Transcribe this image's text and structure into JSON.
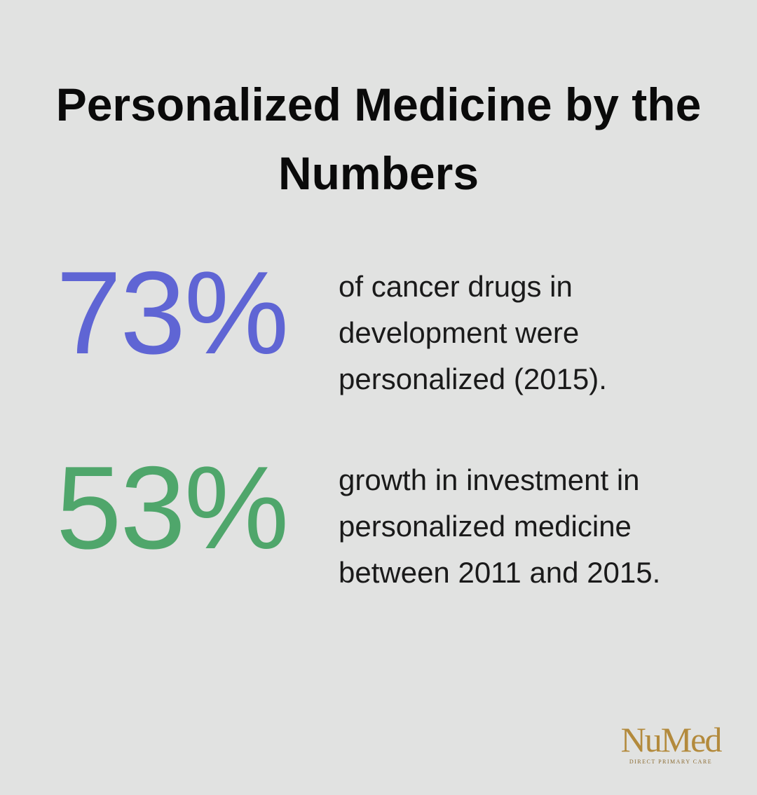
{
  "header": {
    "title": "Personalized Medicine by the Numbers"
  },
  "stats": [
    {
      "value": "73%",
      "description": "of cancer drugs in development were personalized (2015)."
    },
    {
      "value": "53%",
      "description": "growth in investment in personalized medicine between 2011 and 2015."
    }
  ],
  "logo": {
    "name": "NuMed",
    "tagline": "DIRECT PRIMARY CARE"
  }
}
